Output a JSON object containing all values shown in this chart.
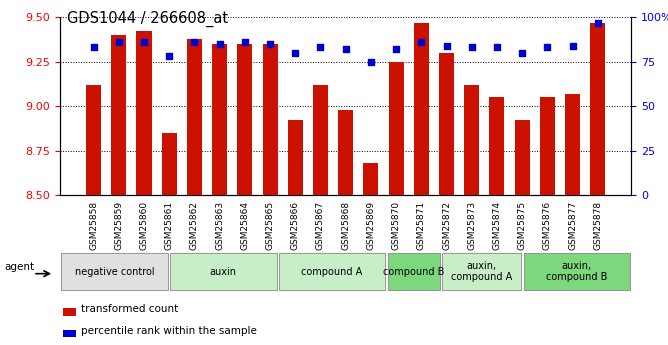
{
  "title": "GDS1044 / 266608_at",
  "samples": [
    "GSM25858",
    "GSM25859",
    "GSM25860",
    "GSM25861",
    "GSM25862",
    "GSM25863",
    "GSM25864",
    "GSM25865",
    "GSM25866",
    "GSM25867",
    "GSM25868",
    "GSM25869",
    "GSM25870",
    "GSM25871",
    "GSM25872",
    "GSM25873",
    "GSM25874",
    "GSM25875",
    "GSM25876",
    "GSM25877",
    "GSM25878"
  ],
  "bar_values": [
    9.12,
    9.4,
    9.42,
    8.85,
    9.38,
    9.35,
    9.35,
    9.35,
    8.92,
    9.12,
    8.98,
    8.68,
    9.25,
    9.47,
    9.3,
    9.12,
    9.05,
    8.92,
    9.05,
    9.07,
    9.47
  ],
  "percentile_values": [
    83,
    86,
    86,
    78,
    86,
    85,
    86,
    85,
    80,
    83,
    82,
    75,
    82,
    86,
    84,
    83,
    83,
    80,
    83,
    84,
    97
  ],
  "bar_color": "#cc1100",
  "dot_color": "#0000cc",
  "ylim_left": [
    8.5,
    9.5
  ],
  "ylim_right": [
    0,
    100
  ],
  "yticks_left": [
    8.5,
    8.75,
    9.0,
    9.25,
    9.5
  ],
  "yticks_right": [
    0,
    25,
    50,
    75,
    100
  ],
  "ytick_labels_right": [
    "0",
    "25",
    "50",
    "75",
    "100%"
  ],
  "groups": [
    {
      "label": "negative control",
      "start": 0,
      "end": 4,
      "color": "#e0e0e0"
    },
    {
      "label": "auxin",
      "start": 4,
      "end": 8,
      "color": "#c8eec8"
    },
    {
      "label": "compound A",
      "start": 8,
      "end": 12,
      "color": "#c8eec8"
    },
    {
      "label": "compound B",
      "start": 12,
      "end": 14,
      "color": "#7dd87d"
    },
    {
      "label": "auxin,\ncompound A",
      "start": 14,
      "end": 17,
      "color": "#c8eec8"
    },
    {
      "label": "auxin,\ncompound B",
      "start": 17,
      "end": 21,
      "color": "#7dd87d"
    }
  ],
  "agent_label": "agent",
  "legend_items": [
    {
      "label": "transformed count",
      "color": "#cc1100"
    },
    {
      "label": "percentile rank within the sample",
      "color": "#0000cc"
    }
  ],
  "background_color": "#ffffff",
  "plot_bg_color": "#ffffff",
  "gridline_color": "#000000"
}
